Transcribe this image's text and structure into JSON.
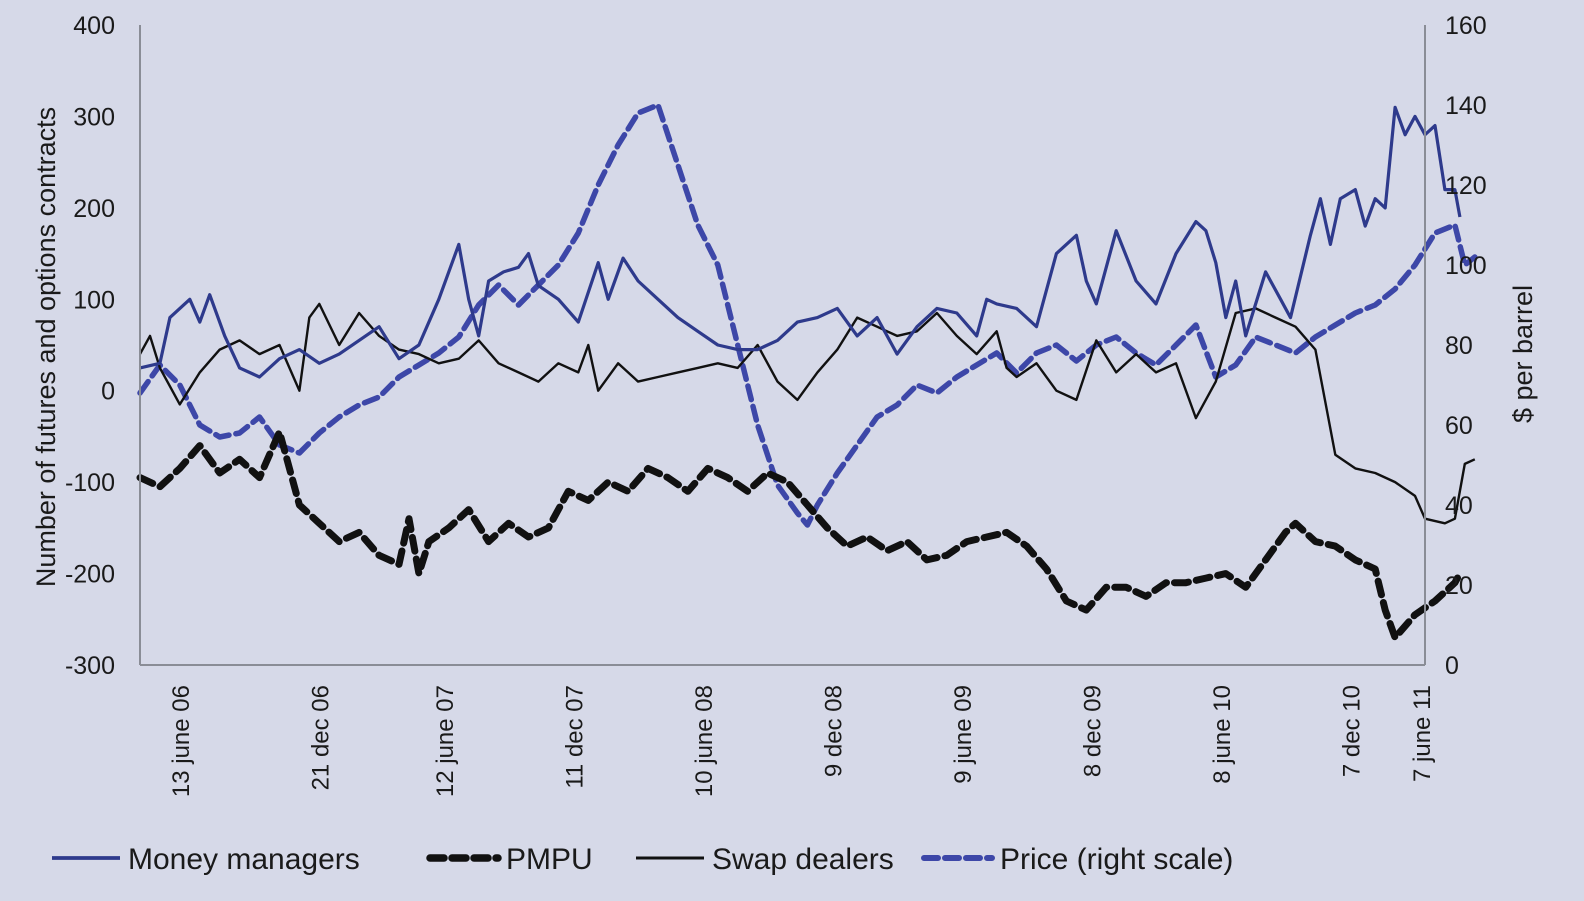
{
  "chart_data": {
    "type": "line",
    "title": "",
    "ylabel": "Number of futures and options contracts",
    "y2label": "$ per barrel",
    "ylim": [
      -300,
      400
    ],
    "y2lim": [
      0,
      160
    ],
    "yticks": [
      -300,
      -200,
      -100,
      0,
      100,
      200,
      300,
      400
    ],
    "y2ticks": [
      0,
      20,
      40,
      60,
      80,
      100,
      120,
      140,
      160
    ],
    "xlim": [
      0,
      258
    ],
    "xticks": [
      {
        "x": 8,
        "label": "13 june 06"
      },
      {
        "x": 36,
        "label": "21 dec 06"
      },
      {
        "x": 61,
        "label": "12 june 07"
      },
      {
        "x": 87,
        "label": "11 dec 07"
      },
      {
        "x": 113,
        "label": "10 june 08"
      },
      {
        "x": 139,
        "label": "9 dec 08"
      },
      {
        "x": 165,
        "label": "9 june 09"
      },
      {
        "x": 191,
        "label": "8 dec 09"
      },
      {
        "x": 217,
        "label": "8 june 10"
      },
      {
        "x": 243,
        "label": "7 dec 10"
      },
      {
        "x": 269,
        "label": "7 june 11"
      }
    ],
    "grid": false,
    "legend_position": "bottom",
    "series": [
      {
        "name": "Money managers",
        "axis": "left",
        "color": "#2e3a8c",
        "style": "solid",
        "points": [
          [
            0,
            25
          ],
          [
            4,
            30
          ],
          [
            6,
            80
          ],
          [
            10,
            100
          ],
          [
            12,
            75
          ],
          [
            14,
            105
          ],
          [
            17,
            60
          ],
          [
            20,
            25
          ],
          [
            24,
            15
          ],
          [
            28,
            35
          ],
          [
            32,
            45
          ],
          [
            36,
            30
          ],
          [
            40,
            40
          ],
          [
            44,
            55
          ],
          [
            48,
            70
          ],
          [
            52,
            35
          ],
          [
            56,
            50
          ],
          [
            60,
            100
          ],
          [
            64,
            160
          ],
          [
            66,
            100
          ],
          [
            68,
            60
          ],
          [
            70,
            120
          ],
          [
            73,
            130
          ],
          [
            76,
            135
          ],
          [
            78,
            150
          ],
          [
            80,
            115
          ],
          [
            84,
            100
          ],
          [
            88,
            75
          ],
          [
            92,
            140
          ],
          [
            94,
            100
          ],
          [
            97,
            145
          ],
          [
            100,
            120
          ],
          [
            104,
            100
          ],
          [
            108,
            80
          ],
          [
            112,
            65
          ],
          [
            116,
            50
          ],
          [
            120,
            45
          ],
          [
            124,
            45
          ],
          [
            128,
            55
          ],
          [
            132,
            75
          ],
          [
            136,
            80
          ],
          [
            140,
            90
          ],
          [
            144,
            60
          ],
          [
            148,
            80
          ],
          [
            152,
            40
          ],
          [
            156,
            70
          ],
          [
            160,
            90
          ],
          [
            164,
            85
          ],
          [
            168,
            60
          ],
          [
            170,
            100
          ],
          [
            172,
            95
          ],
          [
            176,
            90
          ],
          [
            180,
            70
          ],
          [
            184,
            150
          ],
          [
            188,
            170
          ],
          [
            190,
            120
          ],
          [
            192,
            95
          ],
          [
            196,
            175
          ],
          [
            200,
            120
          ],
          [
            204,
            95
          ],
          [
            208,
            150
          ],
          [
            212,
            185
          ],
          [
            214,
            175
          ],
          [
            216,
            140
          ],
          [
            218,
            80
          ],
          [
            220,
            120
          ],
          [
            222,
            60
          ],
          [
            226,
            130
          ],
          [
            229,
            100
          ],
          [
            231,
            80
          ],
          [
            235,
            170
          ],
          [
            237,
            210
          ],
          [
            239,
            160
          ],
          [
            241,
            210
          ],
          [
            244,
            220
          ],
          [
            246,
            180
          ],
          [
            248,
            210
          ],
          [
            250,
            200
          ],
          [
            252,
            310
          ],
          [
            254,
            280
          ],
          [
            256,
            300
          ],
          [
            258,
            280
          ],
          [
            260,
            290
          ],
          [
            262,
            220
          ],
          [
            264,
            220
          ],
          [
            265,
            190
          ]
        ]
      },
      {
        "name": "PMPU",
        "axis": "left",
        "color": "#111111",
        "style": "dashed-heavy",
        "points": [
          [
            0,
            -95
          ],
          [
            4,
            -105
          ],
          [
            8,
            -85
          ],
          [
            12,
            -60
          ],
          [
            16,
            -90
          ],
          [
            20,
            -75
          ],
          [
            24,
            -95
          ],
          [
            28,
            -45
          ],
          [
            32,
            -125
          ],
          [
            36,
            -145
          ],
          [
            40,
            -165
          ],
          [
            44,
            -155
          ],
          [
            48,
            -180
          ],
          [
            52,
            -190
          ],
          [
            54,
            -140
          ],
          [
            56,
            -200
          ],
          [
            58,
            -165
          ],
          [
            62,
            -150
          ],
          [
            66,
            -130
          ],
          [
            70,
            -165
          ],
          [
            74,
            -145
          ],
          [
            78,
            -160
          ],
          [
            82,
            -150
          ],
          [
            86,
            -110
          ],
          [
            90,
            -120
          ],
          [
            94,
            -100
          ],
          [
            98,
            -110
          ],
          [
            102,
            -85
          ],
          [
            106,
            -95
          ],
          [
            110,
            -110
          ],
          [
            114,
            -85
          ],
          [
            118,
            -95
          ],
          [
            122,
            -110
          ],
          [
            126,
            -90
          ],
          [
            130,
            -100
          ],
          [
            134,
            -125
          ],
          [
            138,
            -150
          ],
          [
            142,
            -170
          ],
          [
            146,
            -160
          ],
          [
            150,
            -175
          ],
          [
            154,
            -165
          ],
          [
            158,
            -185
          ],
          [
            162,
            -180
          ],
          [
            166,
            -165
          ],
          [
            170,
            -160
          ],
          [
            174,
            -155
          ],
          [
            178,
            -170
          ],
          [
            182,
            -195
          ],
          [
            186,
            -230
          ],
          [
            190,
            -240
          ],
          [
            194,
            -215
          ],
          [
            198,
            -215
          ],
          [
            202,
            -225
          ],
          [
            206,
            -210
          ],
          [
            210,
            -210
          ],
          [
            214,
            -205
          ],
          [
            218,
            -200
          ],
          [
            222,
            -215
          ],
          [
            226,
            -185
          ],
          [
            230,
            -155
          ],
          [
            232,
            -145
          ],
          [
            236,
            -165
          ],
          [
            240,
            -170
          ],
          [
            244,
            -185
          ],
          [
            248,
            -195
          ],
          [
            250,
            -240
          ],
          [
            252,
            -270
          ],
          [
            256,
            -245
          ],
          [
            260,
            -230
          ],
          [
            264,
            -210
          ],
          [
            265,
            -200
          ]
        ]
      },
      {
        "name": "Swap dealers",
        "axis": "left",
        "color": "#111111",
        "style": "solid-thin",
        "points": [
          [
            0,
            40
          ],
          [
            2,
            60
          ],
          [
            4,
            25
          ],
          [
            8,
            -15
          ],
          [
            12,
            20
          ],
          [
            16,
            45
          ],
          [
            20,
            55
          ],
          [
            24,
            40
          ],
          [
            28,
            50
          ],
          [
            32,
            0
          ],
          [
            34,
            80
          ],
          [
            36,
            95
          ],
          [
            40,
            50
          ],
          [
            44,
            85
          ],
          [
            48,
            60
          ],
          [
            52,
            45
          ],
          [
            56,
            40
          ],
          [
            60,
            30
          ],
          [
            64,
            35
          ],
          [
            68,
            55
          ],
          [
            72,
            30
          ],
          [
            76,
            20
          ],
          [
            80,
            10
          ],
          [
            84,
            30
          ],
          [
            88,
            20
          ],
          [
            90,
            50
          ],
          [
            92,
            0
          ],
          [
            96,
            30
          ],
          [
            100,
            10
          ],
          [
            104,
            15
          ],
          [
            108,
            20
          ],
          [
            112,
            25
          ],
          [
            116,
            30
          ],
          [
            120,
            25
          ],
          [
            124,
            50
          ],
          [
            128,
            10
          ],
          [
            132,
            -10
          ],
          [
            136,
            20
          ],
          [
            140,
            45
          ],
          [
            144,
            80
          ],
          [
            148,
            70
          ],
          [
            152,
            60
          ],
          [
            156,
            65
          ],
          [
            160,
            85
          ],
          [
            164,
            60
          ],
          [
            168,
            40
          ],
          [
            172,
            65
          ],
          [
            174,
            25
          ],
          [
            176,
            15
          ],
          [
            180,
            30
          ],
          [
            184,
            0
          ],
          [
            188,
            -10
          ],
          [
            192,
            55
          ],
          [
            196,
            20
          ],
          [
            200,
            40
          ],
          [
            204,
            20
          ],
          [
            208,
            30
          ],
          [
            212,
            -30
          ],
          [
            216,
            10
          ],
          [
            220,
            85
          ],
          [
            224,
            90
          ],
          [
            228,
            80
          ],
          [
            232,
            70
          ],
          [
            236,
            45
          ],
          [
            240,
            -70
          ],
          [
            244,
            -85
          ],
          [
            248,
            -90
          ],
          [
            252,
            -100
          ],
          [
            256,
            -115
          ],
          [
            258,
            -140
          ],
          [
            262,
            -145
          ],
          [
            264,
            -140
          ],
          [
            266,
            -80
          ],
          [
            268,
            -75
          ]
        ]
      },
      {
        "name": "Price (right scale)",
        "axis": "right",
        "color": "#3d47a8",
        "style": "dashed-light",
        "points": [
          [
            0,
            68
          ],
          [
            4,
            75
          ],
          [
            8,
            70
          ],
          [
            12,
            60
          ],
          [
            16,
            57
          ],
          [
            20,
            58
          ],
          [
            24,
            62
          ],
          [
            28,
            55
          ],
          [
            32,
            53
          ],
          [
            36,
            58
          ],
          [
            40,
            62
          ],
          [
            44,
            65
          ],
          [
            48,
            67
          ],
          [
            52,
            72
          ],
          [
            56,
            75
          ],
          [
            60,
            78
          ],
          [
            64,
            82
          ],
          [
            68,
            90
          ],
          [
            72,
            95
          ],
          [
            76,
            90
          ],
          [
            80,
            95
          ],
          [
            84,
            100
          ],
          [
            88,
            108
          ],
          [
            92,
            120
          ],
          [
            96,
            130
          ],
          [
            100,
            138
          ],
          [
            104,
            140
          ],
          [
            108,
            125
          ],
          [
            112,
            110
          ],
          [
            116,
            100
          ],
          [
            120,
            80
          ],
          [
            124,
            60
          ],
          [
            128,
            45
          ],
          [
            132,
            38
          ],
          [
            134,
            35
          ],
          [
            136,
            40
          ],
          [
            140,
            48
          ],
          [
            144,
            55
          ],
          [
            148,
            62
          ],
          [
            152,
            65
          ],
          [
            156,
            70
          ],
          [
            160,
            68
          ],
          [
            164,
            72
          ],
          [
            168,
            75
          ],
          [
            172,
            78
          ],
          [
            176,
            73
          ],
          [
            180,
            78
          ],
          [
            184,
            80
          ],
          [
            188,
            76
          ],
          [
            192,
            80
          ],
          [
            196,
            82
          ],
          [
            200,
            78
          ],
          [
            204,
            75
          ],
          [
            208,
            80
          ],
          [
            212,
            85
          ],
          [
            216,
            72
          ],
          [
            220,
            75
          ],
          [
            224,
            82
          ],
          [
            228,
            80
          ],
          [
            232,
            78
          ],
          [
            236,
            82
          ],
          [
            240,
            85
          ],
          [
            244,
            88
          ],
          [
            248,
            90
          ],
          [
            252,
            94
          ],
          [
            256,
            100
          ],
          [
            260,
            108
          ],
          [
            264,
            110
          ],
          [
            266,
            100
          ],
          [
            268,
            102
          ]
        ]
      }
    ]
  }
}
